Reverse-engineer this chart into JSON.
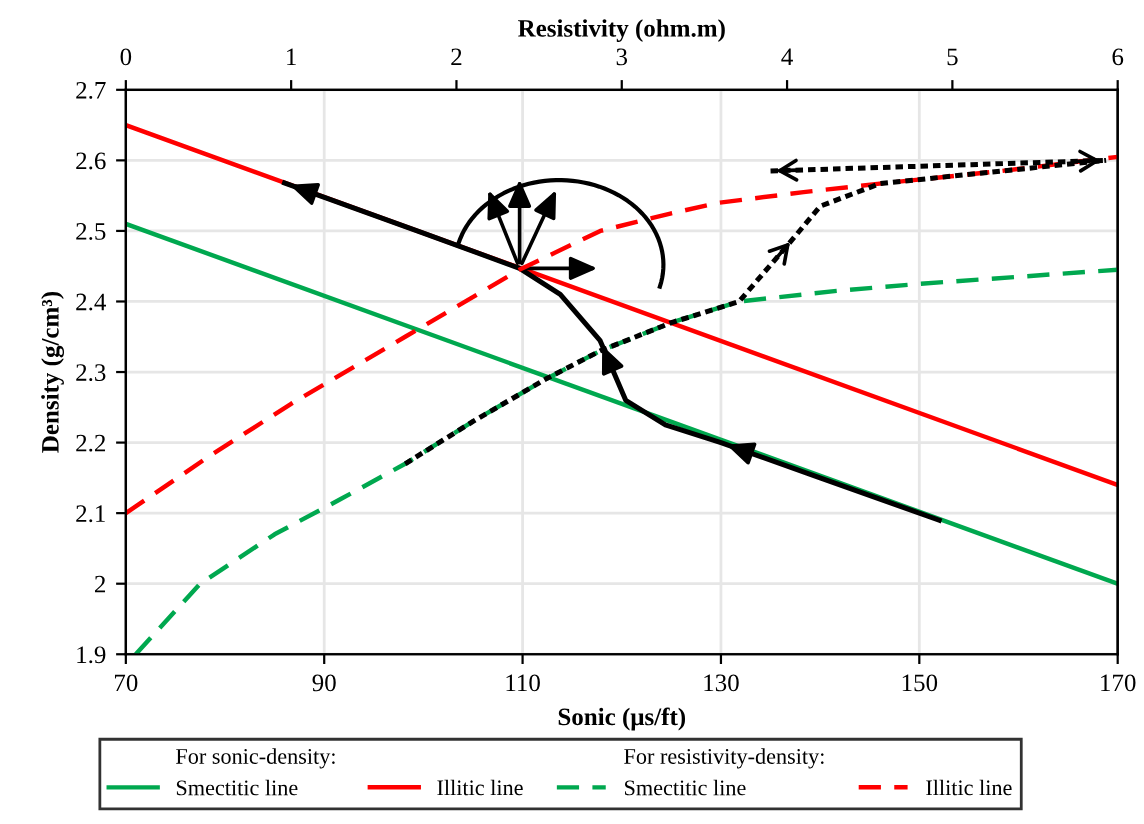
{
  "chart_data": {
    "type": "line",
    "xlabel": "Sonic (μs/ft)",
    "ylabel": "Density (g/cm³)",
    "x2label": "Resistivity (ohm.m)",
    "xlim": [
      70,
      170
    ],
    "xticks": [
      70,
      90,
      110,
      130,
      150,
      170
    ],
    "x2lim": [
      0,
      6
    ],
    "x2ticks": [
      0,
      1,
      2,
      3,
      4,
      5,
      6
    ],
    "ylim": [
      1.9,
      2.7
    ],
    "yticks": [
      1.9,
      2,
      2.1,
      2.2,
      2.3,
      2.4,
      2.5,
      2.6,
      2.7
    ],
    "grid": true,
    "legend": "bottom",
    "marker": "none",
    "annotations": [
      "For sonic-density:",
      "For resistivity-density:"
    ],
    "series": [
      {
        "name": "Smectitic line",
        "color": "#00a84f",
        "line_style": "solid",
        "x": [
          70,
          170
        ],
        "values": [
          2.51,
          2.0
        ]
      },
      {
        "name": "Illitic line",
        "color": "#ff0000",
        "line_style": "solid",
        "x": [
          70,
          170
        ],
        "values": [
          2.65,
          2.14
        ]
      },
      {
        "name": "Smectitic line",
        "color": "#00a84f",
        "line_style": "dashed",
        "axis": "x2",
        "x": [
          0.06,
          0.45,
          0.9,
          1.3,
          1.69,
          2.1,
          2.54,
          2.87,
          3.3,
          3.71,
          4.3,
          4.8,
          5.4,
          6.0
        ],
        "values": [
          1.9,
          2.0,
          2.07,
          2.12,
          2.17,
          2.23,
          2.29,
          2.33,
          2.37,
          2.4,
          2.415,
          2.425,
          2.435,
          2.445
        ]
      },
      {
        "name": "Illitic line",
        "color": "#ff0000",
        "line_style": "dashed",
        "axis": "x2",
        "x": [
          0,
          0.5,
          1.0,
          1.69,
          2.38,
          2.87,
          3.3,
          3.59,
          4.1,
          4.56,
          5.3,
          6.0
        ],
        "values": [
          2.1,
          2.18,
          2.255,
          2.35,
          2.445,
          2.5,
          2.525,
          2.54,
          2.555,
          2.567,
          2.585,
          2.605
        ]
      },
      {
        "color": "#000000",
        "line_style": "solid",
        "x": [
          152,
          140,
          130,
          124.4,
          120.4,
          117.8,
          113.8,
          109.7,
          100,
          86
        ],
        "values": [
          2.09,
          2.15,
          2.2,
          2.225,
          2.26,
          2.345,
          2.41,
          2.447,
          2.497,
          2.568
        ]
      },
      {
        "color": "#000000",
        "line_style": "dotted",
        "axis": "x2",
        "x": [
          1.69,
          2.1,
          2.54,
          2.87,
          3.3,
          3.71,
          4.04,
          4.2,
          4.56,
          5.3,
          5.93
        ],
        "values": [
          2.17,
          2.23,
          2.29,
          2.33,
          2.37,
          2.4,
          2.49,
          2.535,
          2.567,
          2.585,
          2.6
        ]
      },
      {
        "color": "#000000",
        "line_style": "dotted",
        "axis": "x2",
        "x": [
          3.9,
          5.93
        ],
        "values": [
          2.585,
          2.6
        ]
      }
    ]
  }
}
